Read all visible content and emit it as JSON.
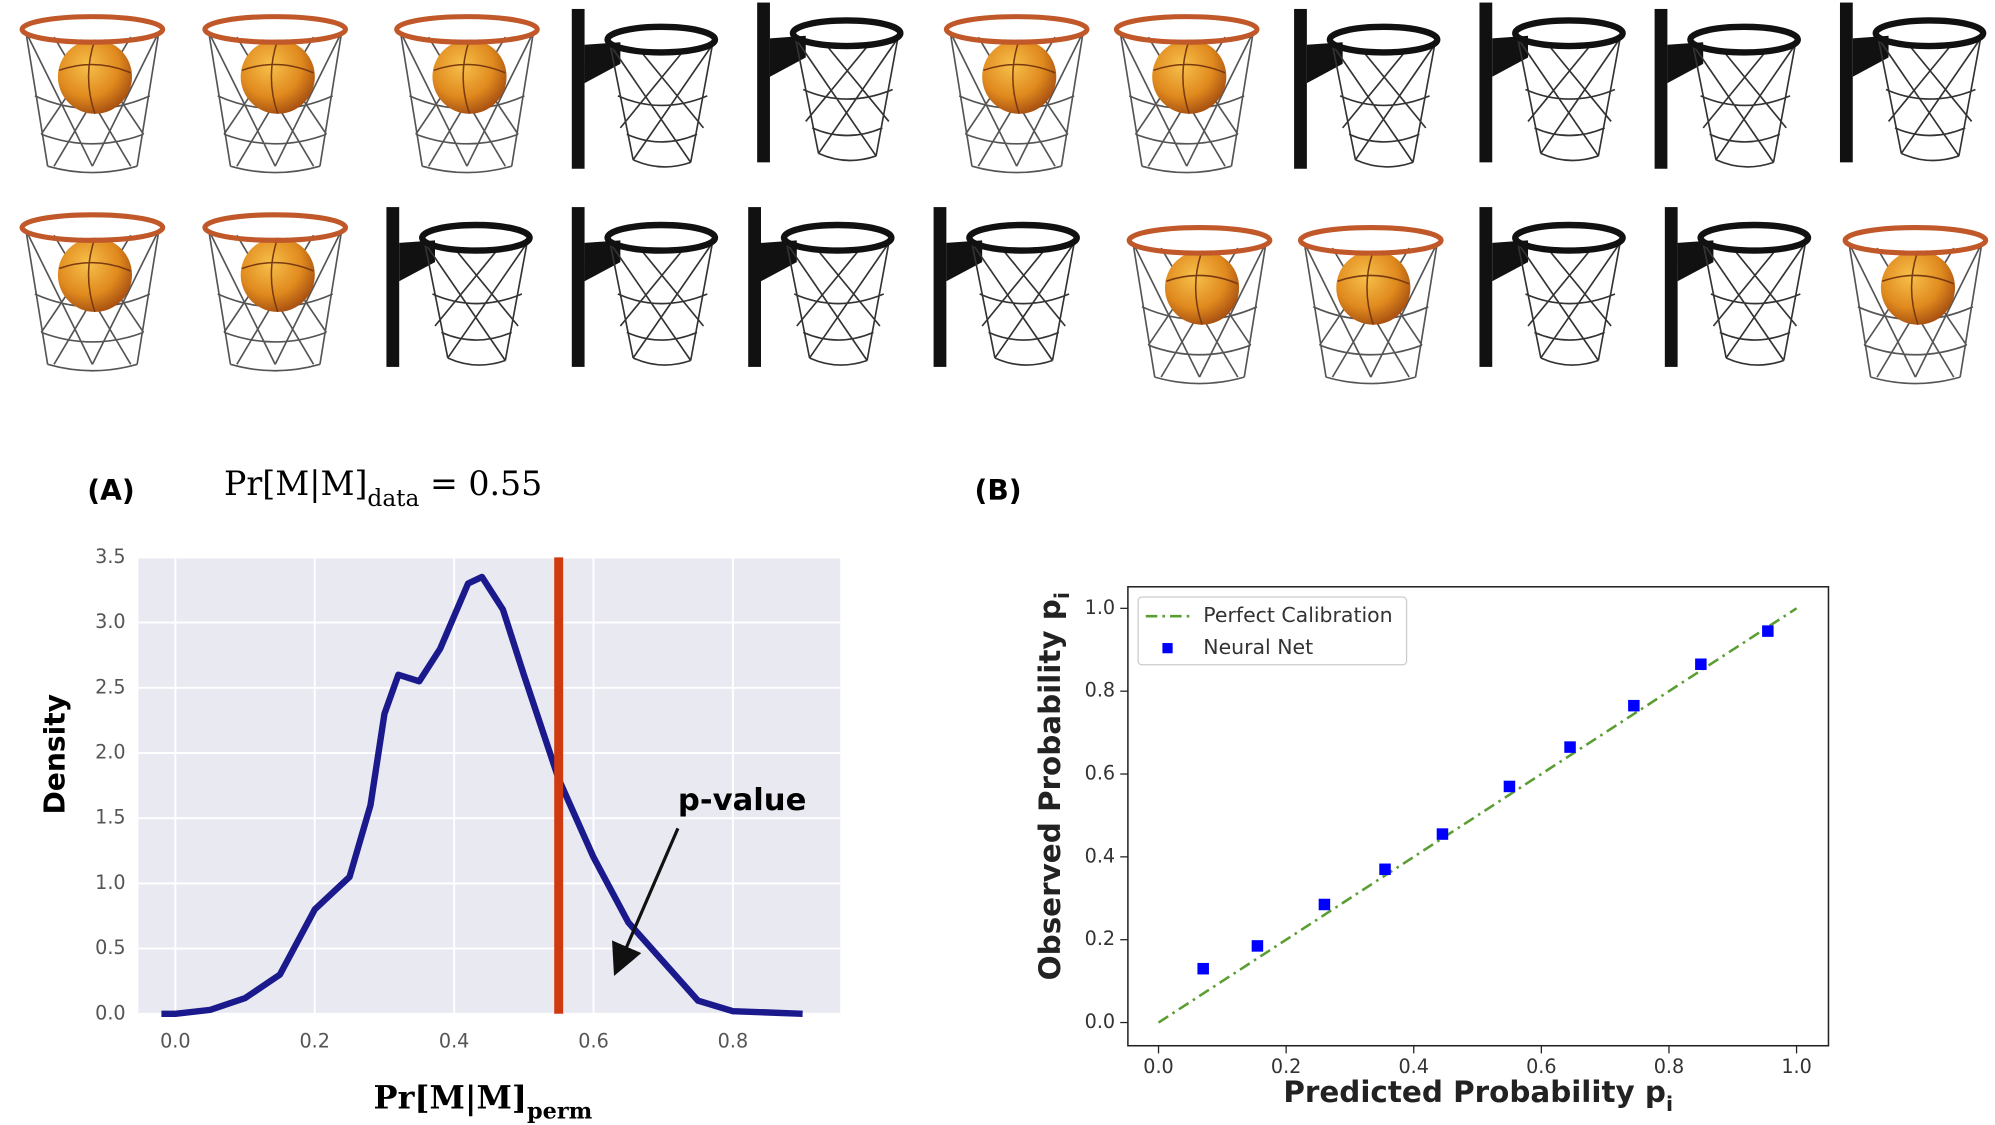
{
  "chart_data": [
    {
      "type": "line",
      "panel": "(A)",
      "annotation": {
        "text": "Pr[M|M]",
        "sub": "data",
        "rest": " = 0.55"
      },
      "arrow_text": "p-value",
      "xlabel": {
        "text": "Pr[M|M]",
        "sub": "perm"
      },
      "ylabel": "Density",
      "x": [
        -0.02,
        0.0,
        0.05,
        0.1,
        0.15,
        0.2,
        0.25,
        0.28,
        0.3,
        0.32,
        0.35,
        0.38,
        0.42,
        0.44,
        0.47,
        0.5,
        0.55,
        0.6,
        0.65,
        0.7,
        0.75,
        0.8,
        0.9
      ],
      "values": [
        0.0,
        0.0,
        0.03,
        0.12,
        0.3,
        0.8,
        1.05,
        1.6,
        2.3,
        2.6,
        2.55,
        2.8,
        3.3,
        3.35,
        3.1,
        2.6,
        1.8,
        1.2,
        0.7,
        0.4,
        0.1,
        0.02,
        0.0
      ],
      "color": "#1a1a8c",
      "vline": 0.55,
      "vline_color": "#d03a10",
      "xlim": [
        -0.053,
        0.954
      ],
      "ylim": [
        0,
        3.5
      ],
      "xticks": [
        {
          "value": 0,
          "label": "0.0"
        },
        0.2,
        0.4,
        0.6,
        0.8
      ],
      "yticks": [
        {
          "value": 0,
          "label": "0.0"
        },
        0.5,
        {
          "value": 1,
          "label": "1.0"
        },
        1.5,
        {
          "value": 2,
          "label": "2.0"
        },
        2.5,
        {
          "value": 3,
          "label": "3.0"
        },
        3.5
      ],
      "grid": true,
      "background": "#e9e9f2"
    },
    {
      "type": "scatter",
      "panel": "(B)",
      "xlabel": {
        "text": "Predicted Probability p",
        "sub": "i"
      },
      "ylabel": {
        "text": "Observed Probability p",
        "sub": "i"
      },
      "series": [
        {
          "name": "Perfect Calibration",
          "type": "line",
          "color": "#5a9e32",
          "x": [
            0,
            1
          ],
          "values": [
            0,
            1
          ]
        },
        {
          "name": "Neural Net",
          "type": "scatter",
          "color": "#0000ff",
          "x": [
            0.07,
            0.155,
            0.26,
            0.355,
            0.445,
            0.55,
            0.645,
            0.745,
            0.85,
            0.955
          ],
          "values": [
            0.13,
            0.185,
            0.285,
            0.37,
            0.455,
            0.57,
            0.665,
            0.765,
            0.865,
            0.945
          ]
        }
      ],
      "legend": "upper left",
      "xlim": [
        -0.048,
        1.05
      ],
      "ylim": [
        -0.056,
        1.052
      ],
      "xticks": [
        {
          "value": 0,
          "label": "0.0"
        },
        0.2,
        0.4,
        0.6,
        0.8,
        {
          "value": 1,
          "label": "1.0"
        }
      ],
      "yticks": [
        {
          "value": 0,
          "label": "0.0"
        },
        0.2,
        0.4,
        0.6,
        0.8,
        {
          "value": 1,
          "label": "1.0"
        }
      ]
    }
  ]
}
